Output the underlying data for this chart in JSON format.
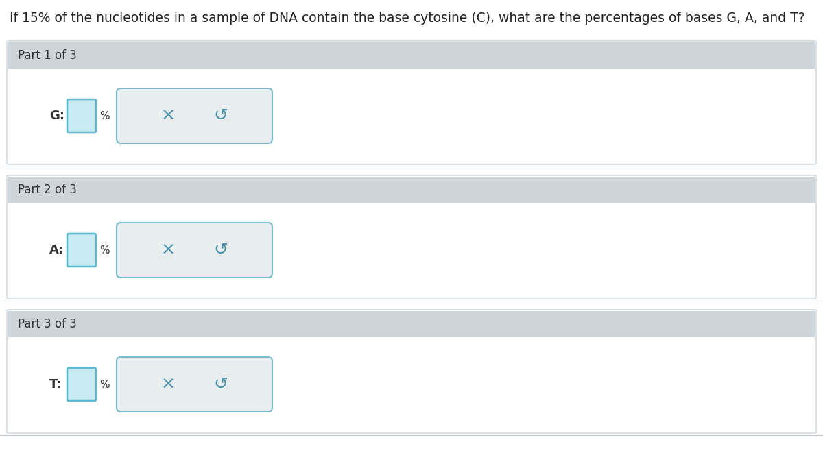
{
  "title": "If 15% of the nucleotides in a sample of DNA contain the base cytosine (C), what are the percentages of bases G, A, and T?",
  "title_fontsize": 13.5,
  "title_color": "#222222",
  "bg_color": "#ffffff",
  "section_header_bg": "#cdd4da",
  "section_border_color": "#c0c8d0",
  "parts": [
    {
      "label": "Part 1 of 3",
      "var": "G:"
    },
    {
      "label": "Part 2 of 3",
      "var": "A:"
    },
    {
      "label": "Part 3 of 3",
      "var": "T:"
    }
  ],
  "input_box_fill": "#c8eaf2",
  "input_box_border": "#5ab8d0",
  "button_bg": "#e8edef",
  "button_border": "#7bbccc",
  "button_text_color": "#4a90a8",
  "percent_color": "#333333",
  "label_color": "#333333",
  "header_text_color": "#333333",
  "header_fontsize": 12,
  "label_fontsize": 13
}
